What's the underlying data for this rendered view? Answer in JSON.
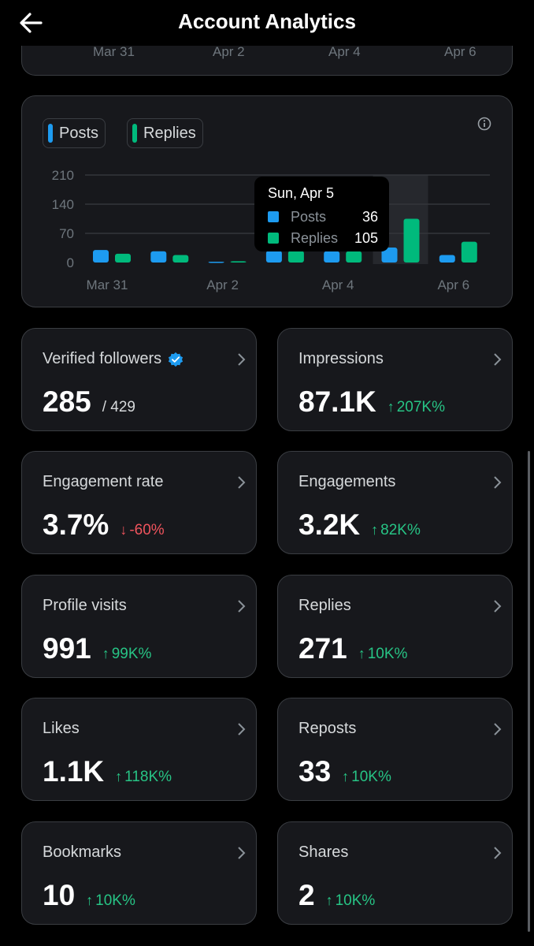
{
  "header": {
    "title": "Account Analytics"
  },
  "previous_chart": {
    "ticks": [
      "Mar 31",
      "Apr 2",
      "Apr 4",
      "Apr 6"
    ]
  },
  "legend": {
    "posts": "Posts",
    "replies": "Replies"
  },
  "colors": {
    "posts": "#1d9bf0",
    "replies": "#00ba7c",
    "up": "#27c485",
    "down": "#f0545d"
  },
  "tooltip": {
    "date": "Sun, Apr 5",
    "rows": [
      {
        "name": "Posts",
        "value": "36"
      },
      {
        "name": "Replies",
        "value": "105"
      }
    ]
  },
  "chart_data": {
    "type": "bar",
    "x": [
      "Mar 31",
      "Apr 1",
      "Apr 2",
      "Apr 3",
      "Apr 4",
      "Apr 5",
      "Apr 6"
    ],
    "tick_labels": [
      "Mar 31",
      "Apr 2",
      "Apr 4",
      "Apr 6"
    ],
    "yticks": [
      "210",
      "140",
      "70",
      "0"
    ],
    "ylim": [
      0,
      210
    ],
    "series": [
      {
        "name": "Posts",
        "values": [
          30,
          27,
          2,
          28,
          27,
          36,
          18
        ]
      },
      {
        "name": "Replies",
        "values": [
          21,
          18,
          3,
          28,
          27,
          105,
          50
        ]
      }
    ],
    "highlighted_index": 5
  },
  "stats": [
    {
      "label": "Verified followers",
      "value": "285",
      "sub": "/ 429",
      "verified": true
    },
    {
      "label": "Impressions",
      "value": "87.1K",
      "delta": "207K%",
      "dir": "up"
    },
    {
      "label": "Engagement rate",
      "value": "3.7%",
      "delta": "-60%",
      "dir": "down"
    },
    {
      "label": "Engagements",
      "value": "3.2K",
      "delta": "82K%",
      "dir": "up"
    },
    {
      "label": "Profile visits",
      "value": "991",
      "delta": "99K%",
      "dir": "up"
    },
    {
      "label": "Replies",
      "value": "271",
      "delta": "10K%",
      "dir": "up"
    },
    {
      "label": "Likes",
      "value": "1.1K",
      "delta": "118K%",
      "dir": "up"
    },
    {
      "label": "Reposts",
      "value": "33",
      "delta": "10K%",
      "dir": "up"
    },
    {
      "label": "Bookmarks",
      "value": "10",
      "delta": "10K%",
      "dir": "up"
    },
    {
      "label": "Shares",
      "value": "2",
      "delta": "10K%",
      "dir": "up"
    }
  ]
}
